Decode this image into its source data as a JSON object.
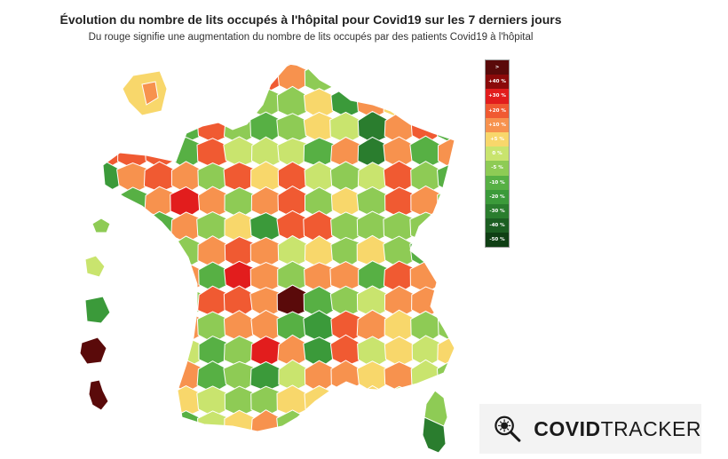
{
  "header": {
    "title": "Évolution du nombre de lits occupés à l'hôpital pour Covid19 sur les 7 derniers jours",
    "subtitle": "Du rouge signifie une augmentation du nombre de lits occupés par des patients Covid19 à l'hôpital"
  },
  "legend": [
    {
      "label": ">",
      "color": "#5a0a0a"
    },
    {
      "label": "+40 %",
      "color": "#8b0a0a"
    },
    {
      "label": "+30 %",
      "color": "#e21d1d"
    },
    {
      "label": "+20 %",
      "color": "#f05a32"
    },
    {
      "label": "+10 %",
      "color": "#f7924e"
    },
    {
      "label": "+5 %",
      "color": "#f8d76b"
    },
    {
      "label": "0 %",
      "color": "#c9e46e"
    },
    {
      "label": "-5 %",
      "color": "#8ecb55"
    },
    {
      "label": "-10 %",
      "color": "#57b044"
    },
    {
      "label": "-20 %",
      "color": "#3b9a3a"
    },
    {
      "label": "-30 %",
      "color": "#2a7d2e"
    },
    {
      "label": "-40 %",
      "color": "#1c5e22"
    },
    {
      "label": "-50 %",
      "color": "#0f3f14"
    }
  ],
  "brand": {
    "name_bold": "COVID",
    "name_regular": "TRACKER",
    "logo_icon": "virus-magnifier-icon"
  }
}
